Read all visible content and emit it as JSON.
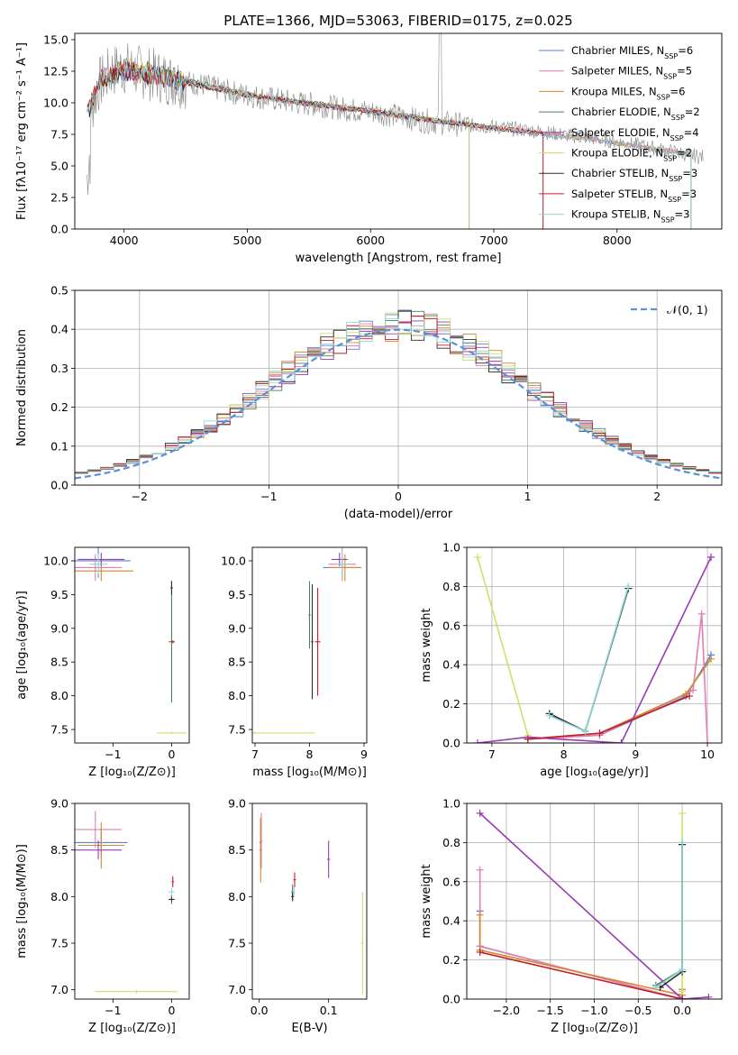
{
  "figure_title": "PLATE=1366, MJD=53063, FIBERID=0175, z=0.025",
  "legend_entries": [
    {
      "label": "Chabrier MILES, N",
      "sub": "SSP",
      "tail": "=6",
      "color": "#5b7fd6"
    },
    {
      "label": "Salpeter MILES, N",
      "sub": "SSP",
      "tail": "=5",
      "color": "#e07fb5"
    },
    {
      "label": "Kroupa MILES, N",
      "sub": "SSP",
      "tail": "=6",
      "color": "#d4892b"
    },
    {
      "label": "Chabrier ELODIE, N",
      "sub": "SSP",
      "tail": "=2",
      "color": "#4f7f5c"
    },
    {
      "label": "Salpeter ELODIE, N",
      "sub": "SSP",
      "tail": "=4",
      "color": "#9a3ab5"
    },
    {
      "label": "Kroupa ELODIE, N",
      "sub": "SSP",
      "tail": "=2",
      "color": "#c8e36a"
    },
    {
      "label": "Chabrier STELIB, N",
      "sub": "SSP",
      "tail": "=3",
      "color": "#2b2b2b"
    },
    {
      "label": "Salpeter STELIB, N",
      "sub": "SSP",
      "tail": "=3",
      "color": "#c81e2a"
    },
    {
      "label": "Kroupa STELIB, N",
      "sub": "SSP",
      "tail": "=3",
      "color": "#8fd8d8"
    }
  ],
  "chart_data": [
    {
      "id": "spectrum",
      "type": "line",
      "title": "PLATE=1366, MJD=53063, FIBERID=0175, z=0.025",
      "xlabel": "wavelength [Angstrom, rest frame]",
      "ylabel": "Flux [fλ10⁻¹⁷ erg cm⁻² s⁻¹ A⁻¹]",
      "xlim": [
        3600,
        8850
      ],
      "ylim": [
        0,
        15.5
      ],
      "xticks": [
        4000,
        5000,
        6000,
        7000,
        8000
      ],
      "yticks": [
        0.0,
        2.5,
        5.0,
        7.5,
        10.0,
        12.5,
        15.0
      ],
      "grid": false,
      "legend": "upper-right",
      "data_color": "#888888",
      "observed": {
        "x": [
          3700,
          3800,
          3900,
          4000,
          4100,
          4200,
          4400,
          4600,
          4800,
          5000,
          5200,
          5400,
          5600,
          5800,
          6000,
          6200,
          6400,
          6600,
          6800,
          7000,
          7200,
          7400,
          7600,
          7800,
          8000,
          8200,
          8400,
          8700
        ],
        "y": [
          8.5,
          11.5,
          12.5,
          12.8,
          12.5,
          12.3,
          11.8,
          11.5,
          11.0,
          10.6,
          10.3,
          10.0,
          9.8,
          9.5,
          9.3,
          9.0,
          8.6,
          8.4,
          8.2,
          8.1,
          7.9,
          7.7,
          7.4,
          7.2,
          6.9,
          6.6,
          6.2,
          5.7
        ]
      },
      "series": [
        {
          "name": "Chabrier MILES, NSSP=6",
          "x": [
            3700,
            3800,
            4000,
            4300,
            4600,
            5000,
            5500,
            6000,
            6500,
            7000,
            7400,
            7800,
            8200,
            8600
          ],
          "y": [
            9.0,
            11.8,
            12.5,
            12.0,
            11.4,
            10.6,
            9.9,
            9.3,
            8.6,
            8.0,
            7.5,
            7.1,
            6.5,
            5.9
          ]
        },
        {
          "name": "Salpeter MILES, NSSP=5",
          "x": [
            3700,
            3800,
            4000,
            4300,
            4600,
            5000,
            5500,
            6000,
            6500,
            7000,
            7400,
            7800,
            8200,
            8600
          ],
          "y": [
            9.1,
            11.9,
            12.6,
            12.1,
            11.5,
            10.7,
            9.9,
            9.3,
            8.6,
            8.0,
            7.5,
            7.1,
            6.5,
            5.9
          ]
        },
        {
          "name": "Kroupa MILES, NSSP=6",
          "x": [
            3700,
            3800,
            4000,
            4300,
            4600,
            5000,
            5500,
            6000,
            6500,
            7000,
            7400,
            7800,
            8200,
            8600
          ],
          "y": [
            9.0,
            11.8,
            12.5,
            12.0,
            11.4,
            10.6,
            9.9,
            9.3,
            8.6,
            8.0,
            7.6,
            7.1,
            6.5,
            5.9
          ]
        },
        {
          "name": "Chabrier ELODIE, NSSP=2",
          "x": [
            3900,
            4000,
            4300,
            4600,
            5000,
            5500,
            6000,
            6500,
            6800
          ],
          "y": [
            12.3,
            12.8,
            12.2,
            11.6,
            10.7,
            10.0,
            9.4,
            8.7,
            8.3
          ]
        },
        {
          "name": "Salpeter ELODIE, NSSP=4",
          "x": [
            3900,
            4000,
            4300,
            4600,
            5000,
            5500,
            6000,
            6500,
            6800
          ],
          "y": [
            12.2,
            12.7,
            12.1,
            11.5,
            10.7,
            10.0,
            9.4,
            8.7,
            8.3
          ]
        },
        {
          "name": "Kroupa ELODIE, NSSP=2",
          "x": [
            3900,
            4000,
            4300,
            4600,
            5000,
            5500,
            6000,
            6500,
            6800
          ],
          "y": [
            12.3,
            12.8,
            12.2,
            11.6,
            10.7,
            10.0,
            9.4,
            8.7,
            8.3
          ]
        },
        {
          "name": "Chabrier STELIB, NSSP=3",
          "x": [
            3700,
            3800,
            4000,
            4300,
            4600,
            5000,
            5500,
            6000,
            6500,
            7000,
            7400
          ],
          "y": [
            9.0,
            11.7,
            12.5,
            12.0,
            11.4,
            10.6,
            9.9,
            9.3,
            8.6,
            8.0,
            7.6
          ]
        },
        {
          "name": "Salpeter STELIB, NSSP=3",
          "x": [
            3700,
            3800,
            4000,
            4300,
            4600,
            5000,
            5500,
            6000,
            6500,
            7000,
            7400
          ],
          "y": [
            9.1,
            11.8,
            12.6,
            12.0,
            11.4,
            10.6,
            9.9,
            9.3,
            8.6,
            8.0,
            7.6
          ]
        },
        {
          "name": "Kroupa STELIB, NSSP=3",
          "x": [
            3700,
            3800,
            4000,
            4300,
            4600,
            5000,
            5500,
            6000,
            6500,
            7000,
            7400,
            7800,
            8200,
            8600
          ],
          "y": [
            9.0,
            11.8,
            12.5,
            12.0,
            11.4,
            10.6,
            9.9,
            9.3,
            8.6,
            8.0,
            7.5,
            7.1,
            6.5,
            5.9
          ]
        }
      ]
    },
    {
      "id": "residuals",
      "type": "histogram",
      "xlabel": "(data-model)/error",
      "ylabel": "Normed distribution",
      "xlim": [
        -2.5,
        2.5
      ],
      "ylim": [
        0,
        0.5
      ],
      "xticks": [
        -2,
        -1,
        0,
        1,
        2
      ],
      "yticks": [
        0.0,
        0.1,
        0.2,
        0.3,
        0.4,
        0.5
      ],
      "grid": true,
      "legend": "upper-right",
      "reference_label": "𝒩(0, 1)",
      "reference_mean": 0,
      "reference_sigma": 1,
      "bin_width": 0.1,
      "bins_start": -2.5
    },
    {
      "id": "age-vs-Z",
      "type": "errorbar",
      "xlabel": "Z [log₁₀(Z/Z⊙)]",
      "ylabel": "age  [log₁₀(age/yr)]",
      "xlim": [
        -1.65,
        0.3
      ],
      "ylim": [
        7.3,
        10.2
      ],
      "xticks": [
        -1,
        0
      ],
      "yticks": [
        7.5,
        8.0,
        8.5,
        9.0,
        9.5,
        10.0
      ],
      "grid": false
    },
    {
      "id": "age-vs-mass",
      "type": "errorbar",
      "xlabel": "mass [log₁₀(M/M⊙)]",
      "xlim": [
        6.95,
        9.05
      ],
      "ylim": [
        7.3,
        10.2
      ],
      "xticks": [
        7,
        8,
        9
      ],
      "yticks": [
        7.5,
        8.0,
        8.5,
        9.0,
        9.5,
        10.0
      ],
      "grid": false
    },
    {
      "id": "weight-vs-age",
      "type": "line",
      "xlabel": "age  [log₁₀(age/yr)]",
      "ylabel": "mass weight",
      "xlim": [
        6.65,
        10.2
      ],
      "ylim": [
        0,
        1.0
      ],
      "xticks": [
        7,
        8,
        9,
        10
      ],
      "yticks": [
        0.0,
        0.2,
        0.4,
        0.6,
        0.8,
        1.0
      ],
      "grid": true,
      "series": [
        {
          "name": "Chabrier MILES, NSSP=6",
          "x": [
            7.5,
            8.5,
            9.7,
            10.05
          ],
          "y": [
            0.02,
            0.04,
            0.24,
            0.45
          ]
        },
        {
          "name": "Salpeter MILES, NSSP=5",
          "x": [
            7.5,
            8.5,
            9.8,
            9.92,
            10.0
          ],
          "y": [
            0.02,
            0.04,
            0.27,
            0.66,
            0.0
          ]
        },
        {
          "name": "Kroupa MILES, NSSP=6",
          "x": [
            7.5,
            8.5,
            9.7,
            10.05
          ],
          "y": [
            0.02,
            0.05,
            0.25,
            0.43
          ]
        },
        {
          "name": "Chabrier ELODIE, NSSP=2",
          "x": [
            7.8,
            8.3,
            8.9
          ],
          "y": [
            0.15,
            0.06,
            0.79
          ]
        },
        {
          "name": "Salpeter ELODIE, NSSP=4",
          "x": [
            6.8,
            7.5,
            8.8,
            10.05
          ],
          "y": [
            0.0,
            0.03,
            0.0,
            0.95
          ]
        },
        {
          "name": "Kroupa ELODIE, NSSP=2",
          "x": [
            6.8,
            7.5
          ],
          "y": [
            0.95,
            0.04
          ]
        },
        {
          "name": "Chabrier STELIB, NSSP=3",
          "x": [
            7.8,
            8.3,
            8.9
          ],
          "y": [
            0.15,
            0.06,
            0.79
          ]
        },
        {
          "name": "Salpeter STELIB, NSSP=3",
          "x": [
            7.5,
            8.5,
            9.75
          ],
          "y": [
            0.02,
            0.05,
            0.24
          ]
        },
        {
          "name": "Kroupa STELIB, NSSP=3",
          "x": [
            7.8,
            8.3,
            8.9
          ],
          "y": [
            0.14,
            0.06,
            0.8
          ]
        }
      ]
    },
    {
      "id": "mass-vs-Z",
      "type": "errorbar",
      "xlabel": "Z [log₁₀(Z/Z⊙)]",
      "ylabel": "mass [log₁₀(M/M⊙)]",
      "xlim": [
        -1.65,
        0.3
      ],
      "ylim": [
        6.9,
        9.0
      ],
      "xticks": [
        -1,
        0
      ],
      "yticks": [
        7.0,
        7.5,
        8.0,
        8.5,
        9.0
      ],
      "grid": false
    },
    {
      "id": "mass-vs-ebv",
      "type": "errorbar",
      "xlabel": "E(B-V)",
      "xlim": [
        -0.01,
        0.155
      ],
      "ylim": [
        6.9,
        9.0
      ],
      "xticks": [
        0.0,
        0.1
      ],
      "yticks": [
        7.0,
        7.5,
        8.0,
        8.5,
        9.0
      ],
      "grid": false
    },
    {
      "id": "weight-vs-Z",
      "type": "line",
      "xlabel": "Z [log₁₀(Z/Z⊙)]",
      "ylabel": "mass weight",
      "xlim": [
        -2.45,
        0.45
      ],
      "ylim": [
        0,
        1.0
      ],
      "xticks": [
        -2.0,
        -1.5,
        -1.0,
        -0.5,
        0.0
      ],
      "yticks": [
        0.0,
        0.2,
        0.4,
        0.6,
        0.8,
        1.0
      ],
      "grid": true,
      "series": [
        {
          "name": "Chabrier MILES, NSSP=6",
          "x": [
            -2.3,
            -2.3,
            0.0,
            0.0
          ],
          "y": [
            0.45,
            0.27,
            0.0,
            0.05
          ]
        },
        {
          "name": "Salpeter MILES, NSSP=5",
          "x": [
            -2.3,
            -2.3,
            0.0
          ],
          "y": [
            0.66,
            0.27,
            0.0
          ]
        },
        {
          "name": "Kroupa MILES, NSSP=6",
          "x": [
            -2.3,
            -2.3,
            0.0,
            0.0
          ],
          "y": [
            0.43,
            0.25,
            0.02,
            0.05
          ]
        },
        {
          "name": "Chabrier ELODIE, NSSP=2",
          "x": [
            -0.3,
            0.0,
            0.0
          ],
          "y": [
            0.07,
            0.15,
            0.79
          ]
        },
        {
          "name": "Salpeter ELODIE, NSSP=4",
          "x": [
            -2.3,
            0.0,
            0.3
          ],
          "y": [
            0.95,
            0.0,
            0.01
          ]
        },
        {
          "name": "Kroupa ELODIE, NSSP=2",
          "x": [
            0.0,
            0.0
          ],
          "y": [
            0.04,
            0.95
          ]
        },
        {
          "name": "Chabrier STELIB, NSSP=3",
          "x": [
            -0.25,
            0.0,
            0.0
          ],
          "y": [
            0.06,
            0.14,
            0.79
          ]
        },
        {
          "name": "Salpeter STELIB, NSSP=3",
          "x": [
            -2.3,
            0.0
          ],
          "y": [
            0.24,
            0.0
          ]
        },
        {
          "name": "Kroupa STELIB, NSSP=3",
          "x": [
            -0.3,
            0.0,
            0.0
          ],
          "y": [
            0.06,
            0.15,
            0.8
          ]
        }
      ]
    }
  ]
}
